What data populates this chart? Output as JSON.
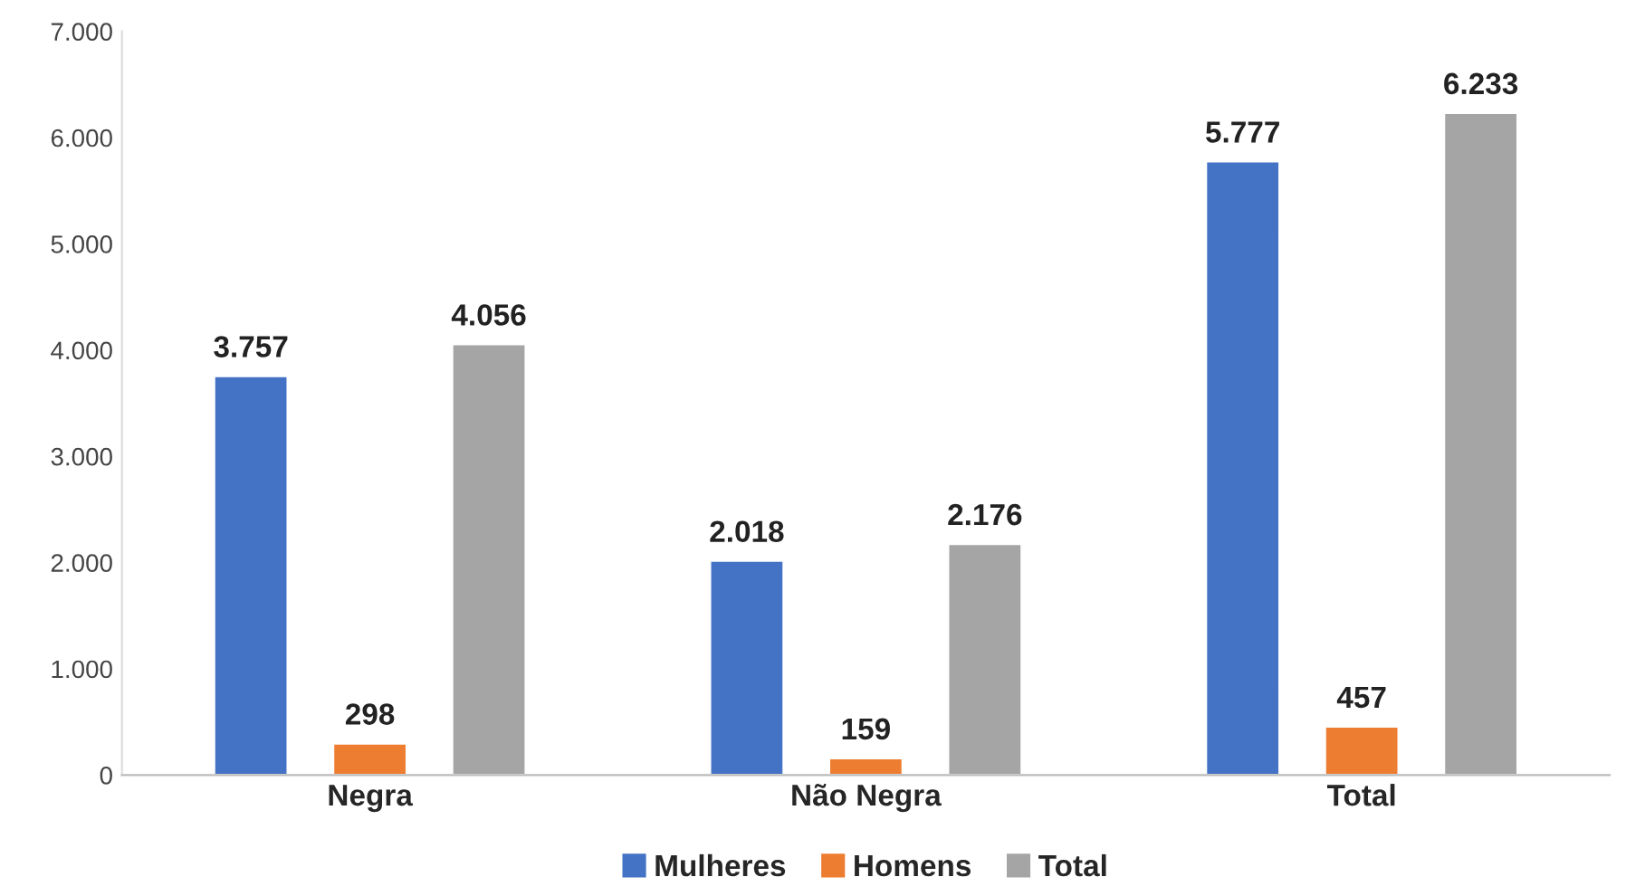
{
  "chart_data": {
    "type": "bar",
    "categories": [
      "Negra",
      "Não Negra",
      "Total"
    ],
    "series": [
      {
        "name": "Mulheres",
        "color": "#4472c4",
        "values": [
          3757,
          2018,
          5777
        ],
        "value_labels": [
          "3.757",
          "2.018",
          "5.777"
        ]
      },
      {
        "name": "Homens",
        "color": "#ed7d31",
        "values": [
          298,
          159,
          457
        ],
        "value_labels": [
          "298",
          "159",
          "457"
        ]
      },
      {
        "name": "Total",
        "color": "#a5a5a5",
        "values": [
          4056,
          2176,
          6233
        ],
        "value_labels": [
          "4.056",
          "2.176",
          "6.233"
        ]
      }
    ],
    "ylim": [
      0,
      7000
    ],
    "yticks": [
      0,
      {
        "value": 1000,
        "label": "1.000"
      },
      {
        "value": 2000,
        "label": "2.000"
      },
      {
        "value": 3000,
        "label": "3.000"
      },
      {
        "value": 4000,
        "label": "4.000"
      },
      {
        "value": 5000,
        "label": "5.000"
      },
      {
        "value": 6000,
        "label": "6.000"
      },
      {
        "value": 7000,
        "label": "7.000"
      }
    ],
    "grid": false,
    "legend": "bottom"
  }
}
